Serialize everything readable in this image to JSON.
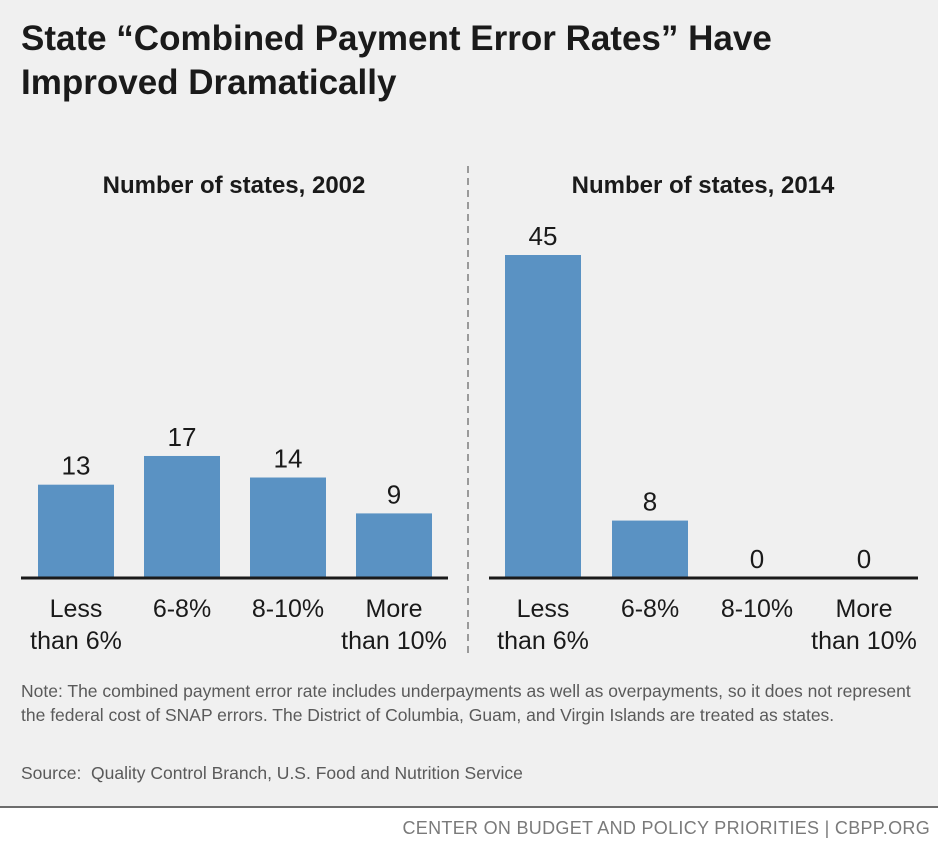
{
  "title": "State “Combined Payment Error Rates” Have Improved Dramatically",
  "note": "Note: The combined payment error rate includes underpayments as well as overpayments, so it does not represent the federal cost of SNAP errors. The District of Columbia, Guam, and Virgin Islands are treated as states.",
  "source": "Source:  Quality Control Branch, U.S. Food and Nutrition Service",
  "footer": "CENTER ON BUDGET AND POLICY PRIORITIES | CBPP.ORG",
  "colors": {
    "bar": "#5a92c3",
    "axis": "#1a1a1a",
    "divider": "#9a9a9a"
  },
  "chart_data": [
    {
      "type": "bar",
      "title": "Number of states, 2002",
      "categories": [
        "Less\nthan 6%",
        "6-8%",
        "8-10%",
        "More\nthan 10%"
      ],
      "values": [
        13,
        17,
        14,
        9
      ],
      "ylim": [
        0,
        45
      ],
      "grid": false,
      "legend": "none"
    },
    {
      "type": "bar",
      "title": "Number of states, 2014",
      "categories": [
        "Less\nthan 6%",
        "6-8%",
        "8-10%",
        "More\nthan 10%"
      ],
      "values": [
        45,
        8,
        0,
        0
      ],
      "ylim": [
        0,
        45
      ],
      "grid": false,
      "legend": "none"
    }
  ]
}
